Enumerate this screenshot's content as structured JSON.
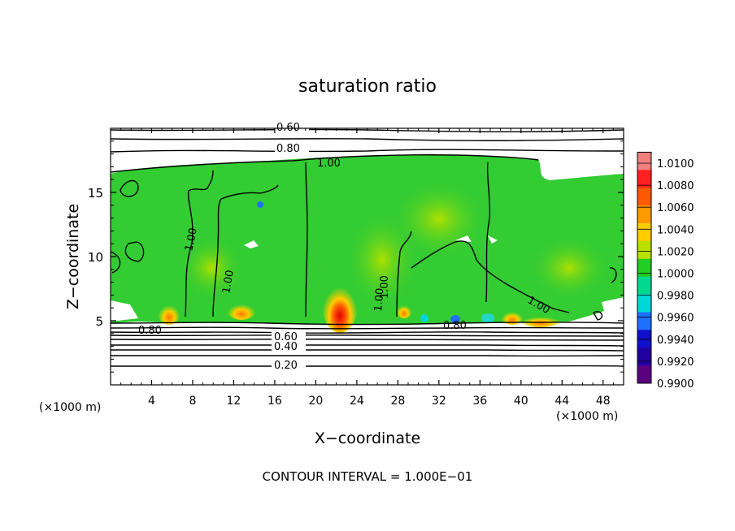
{
  "chart_data": {
    "type": "heatmap",
    "title": "saturation ratio",
    "xlabel": "X−coordinate",
    "ylabel": "Z−coordinate",
    "x_unit_left": "(×1000 m)",
    "x_unit_right": "(×1000 m)",
    "xlim": [
      0,
      50
    ],
    "ylim": [
      0,
      20
    ],
    "x_ticks": [
      4,
      8,
      12,
      16,
      20,
      24,
      28,
      32,
      36,
      40,
      44,
      48
    ],
    "y_ticks": [
      5,
      10,
      15
    ],
    "colorbar": {
      "levels": [
        "1.0100",
        "1.0080",
        "1.0060",
        "1.0040",
        "1.0020",
        "1.0000",
        "0.9980",
        "0.9960",
        "0.9940",
        "0.9920",
        "0.9900"
      ],
      "colors": [
        "#f08080",
        "#ff2020",
        "#ff5a00",
        "#ff9900",
        "#ffcc00",
        "#b8e000",
        "#22cc22",
        "#00d890",
        "#00d8d8",
        "#1e70ff",
        "#1010cc",
        "#2000a0",
        "#5a0080"
      ]
    },
    "contour_labels": [
      "0.60",
      "0.80",
      "1.00",
      "1.00",
      "1.00",
      "1.00",
      "1.00",
      "1.00",
      "0.80",
      "0.80",
      "0.60",
      "0.40",
      "0.20"
    ],
    "footer": "CONTOUR INTERVAL = 1.000E−01"
  }
}
